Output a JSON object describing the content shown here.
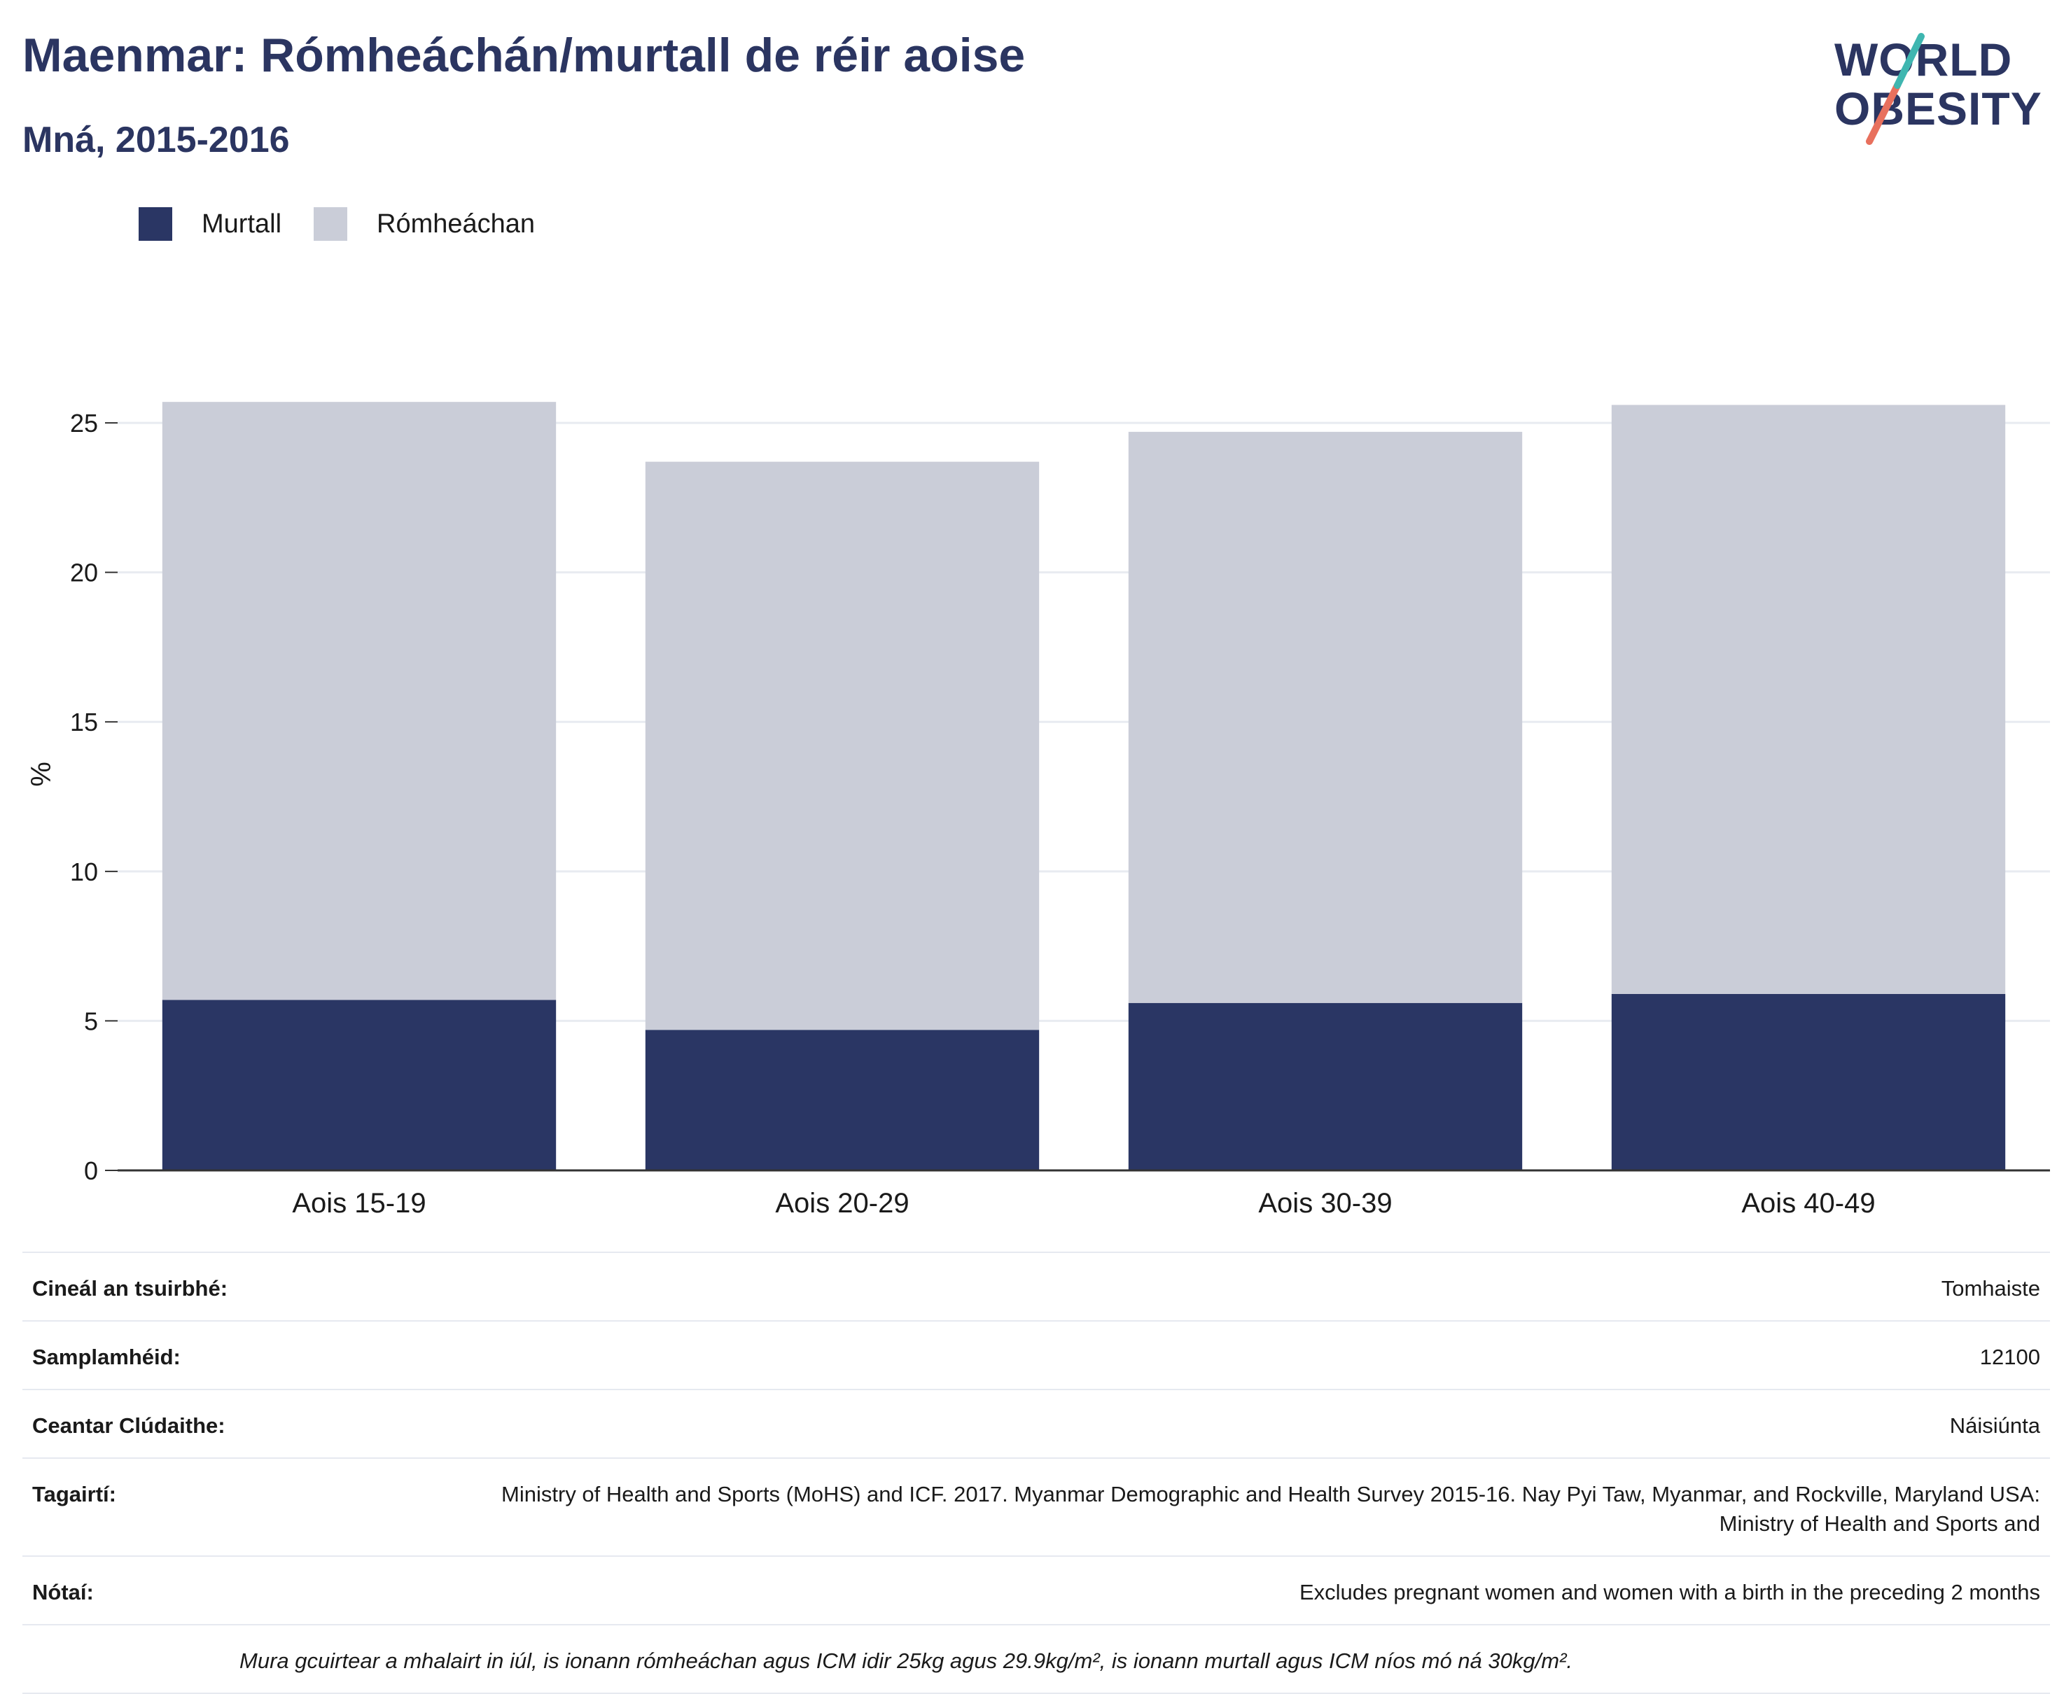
{
  "title": "Maenmar: Rómheáchán/murtall de réir aoise",
  "subtitle": "Mná, 2015-2016",
  "logo": {
    "line1": "WORLD",
    "line2": "OBESITY",
    "colors": [
      "#2b3561",
      "#3fb6b0",
      "#e8705d"
    ]
  },
  "colors": {
    "obesity": "#2a3664",
    "overweight": "#cacdd8",
    "title": "#2b3561",
    "grid": "#e8ebf1"
  },
  "legend": [
    {
      "label": "Murtall",
      "color": "#2a3664"
    },
    {
      "label": "Rómheáchan",
      "color": "#cacdd8"
    }
  ],
  "chart_data": {
    "type": "bar",
    "stacked": true,
    "categories": [
      "Aois 15-19",
      "Aois 20-29",
      "Aois 30-39",
      "Aois 40-49"
    ],
    "series": [
      {
        "name": "Murtall",
        "values": [
          5.7,
          4.7,
          5.6,
          5.9
        ]
      },
      {
        "name": "Rómheáchan",
        "values": [
          20.0,
          19.0,
          19.1,
          19.7
        ]
      }
    ],
    "ylabel": "%",
    "yticks": [
      0,
      5,
      10,
      15,
      20,
      25
    ],
    "ylim": [
      0,
      26.5
    ],
    "grid": true
  },
  "info": [
    {
      "key": "Cineál an tsuirbhé:",
      "value": "Tomhaiste"
    },
    {
      "key": "Samplamhéid:",
      "value": "12100"
    },
    {
      "key": "Ceantar Clúdaithe:",
      "value": "Náisiúnta"
    },
    {
      "key": "Tagairtí:",
      "value": "Ministry of Health and Sports (MoHS) and ICF. 2017. Myanmar Demographic and Health Survey 2015-16. Nay Pyi Taw, Myanmar, and Rockville, Maryland USA: Ministry of Health and Sports and"
    },
    {
      "key": "Nótaí:",
      "value": "Excludes pregnant women and women with a birth in the preceding 2 months"
    }
  ],
  "footnote": "Mura gcuirtear a mhalairt in iúl, is ionann rómheáchan agus ICM idir 25kg agus 29.9kg/m², is ionann murtall agus ICM níos mó ná 30kg/m²."
}
